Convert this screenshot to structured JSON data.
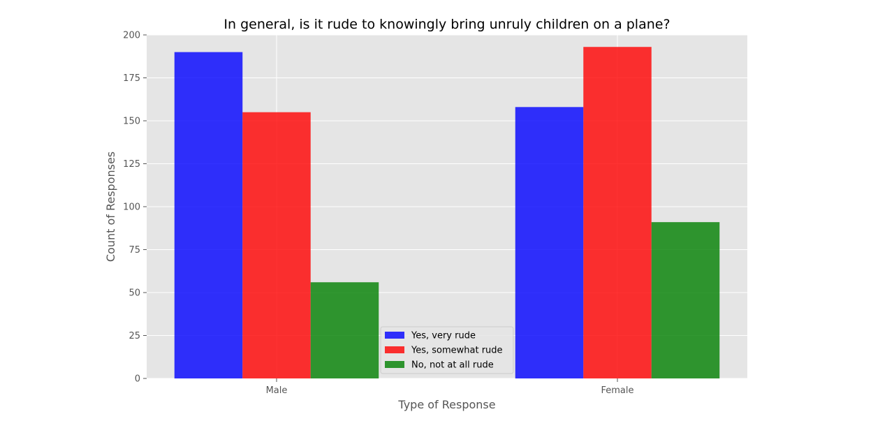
{
  "chart_data": {
    "type": "bar",
    "title": "In general, is it rude to knowingly bring unruly children on a plane?",
    "xlabel": "Type of Response",
    "ylabel": "Count of Responses",
    "categories": [
      "Male",
      "Female"
    ],
    "series": [
      {
        "name": "Yes, very rude",
        "values": [
          190,
          158
        ],
        "color": "#0000ff"
      },
      {
        "name": "Yes, somewhat rude",
        "values": [
          155,
          193
        ],
        "color": "#ff0000"
      },
      {
        "name": "No, not at all rude",
        "values": [
          56,
          91
        ],
        "color": "#008000"
      }
    ],
    "ylim": [
      0,
      200
    ],
    "yticks": [
      0,
      25,
      50,
      75,
      100,
      125,
      150,
      175,
      200
    ],
    "grid": true,
    "legend_position": "bottom-center",
    "colors": {
      "background": "#e5e5e5",
      "grid": "#ffffff",
      "tick": "#555555"
    }
  }
}
